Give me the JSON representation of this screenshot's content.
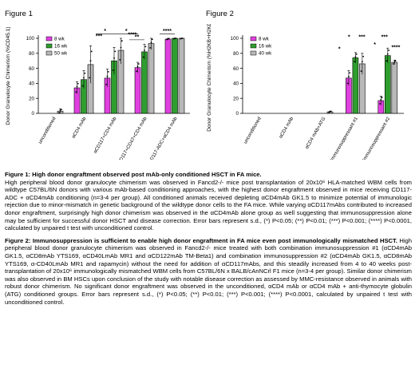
{
  "figure1_label": "Figure 1",
  "figure2_label": "Figure 2",
  "chart_data": [
    {
      "type": "bar",
      "ylabel": "Donor Granulocyte Chimerism (%CD45.1)",
      "ylim": [
        0,
        100
      ],
      "yticks": [
        0,
        20,
        40,
        60,
        80,
        100
      ],
      "categories": [
        "unconditioned",
        "αCD4 mAb",
        "αCD117+CD4 mAb",
        "αCD117+CD47+CD4 mAb",
        "CD117-ADC+αCD4 mAb"
      ],
      "series": [
        {
          "name": "8 wk",
          "color": "#e040e0",
          "values": [
            0,
            34,
            47,
            61,
            99
          ],
          "errors": [
            0,
            8,
            12,
            7,
            1
          ]
        },
        {
          "name": "16 wk",
          "color": "#2e9e2e",
          "values": [
            0,
            45,
            70,
            82,
            100
          ],
          "errors": [
            0,
            12,
            18,
            10,
            1
          ]
        },
        {
          "name": "50 wk",
          "color": "#b8b8b8",
          "values": [
            3,
            65,
            84,
            93,
            100
          ],
          "errors": [
            3,
            25,
            18,
            8,
            1
          ]
        }
      ],
      "significance": [
        "*",
        "***",
        "**",
        "***",
        "****",
        "****"
      ],
      "legend_position": "top-left"
    },
    {
      "type": "bar",
      "ylabel": "Donor Granulocyte Chimerism (%H2KB+H2KD)",
      "ylim": [
        0,
        100
      ],
      "yticks": [
        0,
        20,
        40,
        60,
        80,
        100
      ],
      "categories": [
        "unconditioned",
        "αCD4 mAb",
        "αCD4 mAb+ATG",
        "Immunosuppressant #1",
        "Immunosuppressant #2"
      ],
      "series": [
        {
          "name": "8 wk",
          "color": "#e040e0",
          "values": [
            0,
            0,
            0,
            47,
            17
          ],
          "errors": [
            0,
            0,
            0,
            10,
            6
          ]
        },
        {
          "name": "16 wk",
          "color": "#2e9e2e",
          "values": [
            0,
            0,
            0,
            74,
            77
          ],
          "errors": [
            0,
            0,
            0,
            7,
            10
          ]
        },
        {
          "name": "40 wk",
          "color": "#b8b8b8",
          "values": [
            0,
            0,
            2,
            66,
            68
          ],
          "errors": [
            0,
            0,
            1,
            14,
            3
          ]
        }
      ],
      "significance": [
        "*",
        "***",
        "*",
        "*",
        "***",
        "****"
      ],
      "legend_position": "top-left"
    }
  ],
  "captions": {
    "fig1_title": "Figure 1: High donor engraftment observed post mAb-only conditioned HSCT in FA mice.",
    "fig1_body": "High peripheral blood donor granulocyte chimerism was observed in Fancd2-/- mice post transplantation of 20x10⁶ HLA-matched WBM cells from wildtype C57BL/6N donors with various mAb-based conditioning approaches, with the highest donor engraftment observed in mice receiving CD117-ADC + αCD4mAb conditioning (n=3-4 per group). All conditioned animals received depleting αCD4mAb GK1.5 to minimize potential of immunologic rejection due to minor-mismatch in genetic background of the wildtype donor cells to the FA mice. While varying αCD117mAbs contributed to increased donor engraftment, surprisingly high donor chimerism was observed in the αCD4mAb alone group as well suggesting that immunosuppression alone may be sufficient for successful donor HSCT and disease correction. Error bars represent s.d., (*) P<0.05; (**) P<0.01; (***) P<0.001; (****) P<0.0001, calculated by unpaired t test with unconditioned control.",
    "fig2_title": "Figure 2: Immunosuppression is sufficient to enable high donor engraftment in FA mice even post immunologically mismatched HSCT.",
    "fig2_body": "High peripheral blood donor granulocyte chimerism was observed in Fancd2-/- mice treated with both combination immunosuppression #1 (αCD4mAb GK1.5, αCD8mAb YTS169, αCD40LmAb MR1 and αCD122mAb TM-Beta1) and combination immunosuppression #2 (αCD4mAb GK1.5, αCD8mAb YTS169, α-CD40LmAb MR1 and rapamycin) without the need for addition of αCD117mAbs, and this steadily increased from 4 to 40 weeks post-transplantation of 20x10⁶ immunologically mismatched WBM cells from C57BL/6N x BALB/cAnNCrl F1 mice (n=3-4 per group). Similar donor chimerism was also observed in BM HSCs upon conclusion of the study with notable disease correction as assessed by MMC-resistance observed in animals with robust donor chimerism. No significant donor engraftment was observed in the unconditioned, αCD4 mAb or αCD4 mAb + anti-thymocyte globulin (ATG) conditioned groups. Error bars represent s.d., (*) P<0.05; (**) P<0.01; (***) P<0.001; (****) P<0.0001, calculated by unpaired t test with unconditioned control."
  }
}
